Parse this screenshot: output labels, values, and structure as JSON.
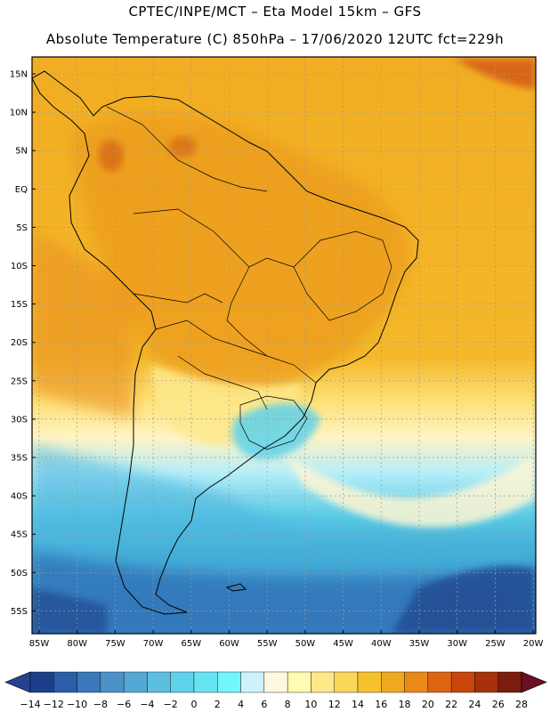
{
  "header": {
    "line1": "CPTEC/INPE/MCT –  Eta Model 15km – GFS",
    "line2": "Absolute Temperature (C) 850hPa – 17/06/2020 12UTC fct=229h"
  },
  "lat_labels": [
    "15N",
    "10N",
    "5N",
    "EQ",
    "5S",
    "10S",
    "15S",
    "20S",
    "25S",
    "30S",
    "35S",
    "40S",
    "45S",
    "50S",
    "55S"
  ],
  "lon_labels": [
    "85W",
    "80W",
    "75W",
    "70W",
    "65W",
    "60W",
    "55W",
    "50W",
    "45W",
    "40W",
    "35W",
    "30W",
    "25W",
    "20W"
  ],
  "colorbar": {
    "labels": [
      "-14",
      "-12",
      "-10",
      "-8",
      "-6",
      "-4",
      "-2",
      "0",
      "2",
      "4",
      "6",
      "8",
      "10",
      "12",
      "14",
      "16",
      "18",
      "20",
      "22",
      "24",
      "26",
      "28"
    ],
    "colors": [
      "#1c3f8a",
      "#2a5ea8",
      "#3a78bc",
      "#4a92c8",
      "#55a8d6",
      "#5cbfe0",
      "#5fd2ea",
      "#66e4f2",
      "#72f6fb",
      "#cdf2fb",
      "#fff8e0",
      "#fffbb0",
      "#fde88a",
      "#fad65a",
      "#f6c22c",
      "#f0a91e",
      "#e8891a",
      "#dc6512",
      "#c8450c",
      "#a8300a",
      "#7c1c0c"
    ],
    "low_color": "#24438e",
    "high_color": "#6b0f24"
  },
  "colors": {
    "land_border": "#000000",
    "grid": "#9a9a9a"
  }
}
